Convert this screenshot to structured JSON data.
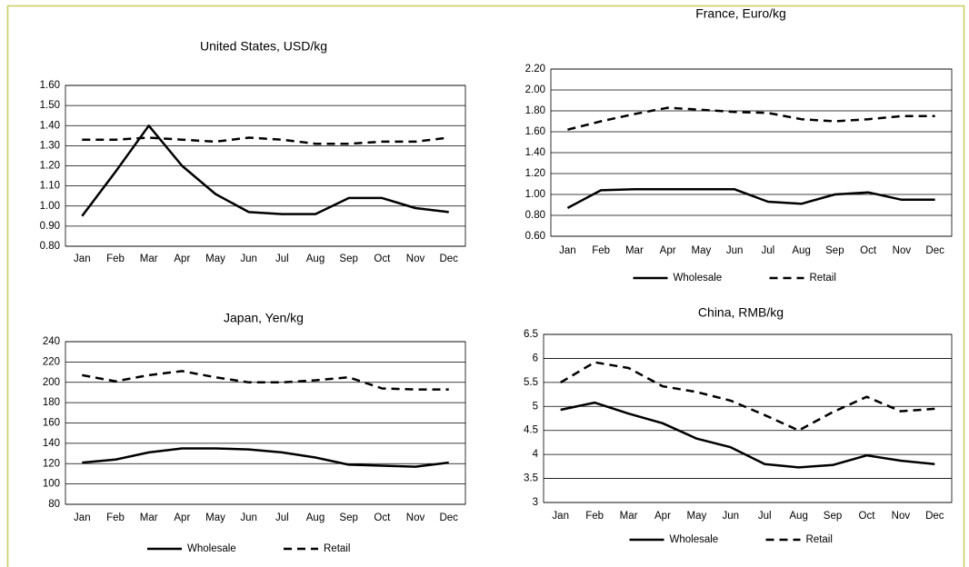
{
  "chart_data": [
    {
      "type": "line",
      "title": "United States,  USD/kg",
      "categories": [
        "Jan",
        "Feb",
        "Mar",
        "Apr",
        "May",
        "Jun",
        "Jul",
        "Aug",
        "Sep",
        "Oct",
        "Nov",
        "Dec"
      ],
      "series": [
        {
          "color": "#000000",
          "dash": false,
          "values": [
            0.95,
            1.17,
            1.4,
            1.2,
            1.06,
            0.97,
            0.96,
            0.96,
            1.04,
            1.04,
            0.99,
            0.97
          ]
        },
        {
          "color": "#000000",
          "dash": true,
          "values": [
            1.33,
            1.33,
            1.34,
            1.33,
            1.32,
            1.34,
            1.33,
            1.31,
            1.31,
            1.32,
            1.32,
            1.34
          ]
        }
      ],
      "ylim": [
        0.8,
        1.6
      ],
      "yticks": [
        {
          "value": 0.8,
          "label": "0.80"
        },
        {
          "value": 0.9,
          "label": "0.90"
        },
        {
          "value": 1,
          "label": "1.00"
        },
        {
          "value": 1.1,
          "label": "1.10"
        },
        {
          "value": 1.2,
          "label": "1.20"
        },
        {
          "value": 1.3,
          "label": "1.30"
        },
        {
          "value": 1.4,
          "label": "1.40"
        },
        {
          "value": 1.5,
          "label": "1.50"
        },
        {
          "value": 1.6,
          "label": "1.60"
        }
      ],
      "grid": true
    },
    {
      "type": "line",
      "title": "France, Euro/kg",
      "categories": [
        "Jan",
        "Feb",
        "Mar",
        "Apr",
        "May",
        "Jun",
        "Jul",
        "Aug",
        "Sep",
        "Oct",
        "Nov",
        "Dec"
      ],
      "series": [
        {
          "name": "Wholesale",
          "color": "#000000",
          "dash": false,
          "values": [
            0.87,
            1.04,
            1.05,
            1.05,
            1.05,
            1.05,
            0.93,
            0.91,
            1.0,
            1.02,
            0.95,
            0.95
          ]
        },
        {
          "name": "Retail",
          "color": "#000000",
          "dash": true,
          "values": [
            1.62,
            1.7,
            1.77,
            1.83,
            1.81,
            1.79,
            1.78,
            1.72,
            1.7,
            1.72,
            1.75,
            1.75
          ]
        }
      ],
      "ylim": [
        0.6,
        2.2
      ],
      "yticks": [
        {
          "value": 0.6,
          "label": "0.60"
        },
        {
          "value": 0.8,
          "label": "0.80"
        },
        {
          "value": 1,
          "label": "1.00"
        },
        {
          "value": 1.2,
          "label": "1.20"
        },
        {
          "value": 1.4,
          "label": "1.40"
        },
        {
          "value": 1.6,
          "label": "1.60"
        },
        {
          "value": 1.8,
          "label": "1.80"
        },
        {
          "value": 2,
          "label": "2.00"
        },
        {
          "value": 2.2,
          "label": "2.20"
        }
      ],
      "grid": true,
      "legend": "bottom"
    },
    {
      "type": "line",
      "title": "Japan, Yen/kg",
      "categories": [
        "Jan",
        "Feb",
        "Mar",
        "Apr",
        "May",
        "Jun",
        "Jul",
        "Aug",
        "Sep",
        "Oct",
        "Nov",
        "Dec"
      ],
      "series": [
        {
          "name": "Wholesale",
          "color": "#000000",
          "dash": false,
          "values": [
            121,
            124,
            131,
            135,
            135,
            134,
            131,
            126,
            119,
            118,
            117,
            121
          ]
        },
        {
          "name": "Retail",
          "color": "#000000",
          "dash": true,
          "values": [
            207,
            201,
            207,
            211,
            205,
            200,
            200,
            202,
            205,
            194,
            193,
            193
          ]
        }
      ],
      "ylim": [
        80,
        240
      ],
      "yticks": [
        80,
        100,
        120,
        140,
        160,
        180,
        200,
        220,
        240
      ],
      "grid": true,
      "legend": "bottom"
    },
    {
      "type": "line",
      "title": "China, RMB/kg",
      "categories": [
        "Jan",
        "Feb",
        "Mar",
        "Apr",
        "May",
        "Jun",
        "Jul",
        "Aug",
        "Sep",
        "Oct",
        "Nov",
        "Dec"
      ],
      "series": [
        {
          "name": "Wholesale",
          "color": "#000000",
          "dash": false,
          "values": [
            4.93,
            5.08,
            4.85,
            4.65,
            4.33,
            4.15,
            3.8,
            3.73,
            3.78,
            3.98,
            3.87,
            3.8
          ]
        },
        {
          "name": "Retail",
          "color": "#000000",
          "dash": true,
          "values": [
            5.5,
            5.92,
            5.8,
            5.42,
            5.3,
            5.12,
            4.82,
            4.5,
            4.88,
            5.2,
            4.9,
            4.95
          ]
        }
      ],
      "ylim": [
        3,
        6.5
      ],
      "yticks": [
        3,
        3.5,
        4,
        4.5,
        5,
        5.5,
        6,
        6.5
      ],
      "grid": true,
      "legend": "bottom"
    }
  ]
}
